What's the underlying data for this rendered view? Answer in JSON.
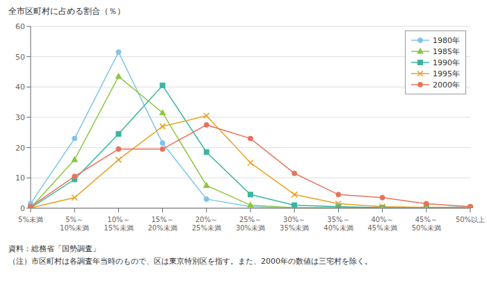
{
  "chart_data": {
    "type": "line",
    "title": "全市区町村に占める割合（％）",
    "categories": [
      "5%未満",
      "5%～\n10%未満",
      "10%～\n15%未満",
      "15%～\n20%未満",
      "20%～\n25%未満",
      "25%～\n30%未満",
      "30%～\n35%未満",
      "35%～\n40%未満",
      "40%～\n45%未満",
      "45%～\n50%未満",
      "50%以上"
    ],
    "series": [
      {
        "name": "1980年",
        "color": "#7fc4e8",
        "marker": "circle",
        "values": [
          1.5,
          23.0,
          51.5,
          21.5,
          3.0,
          0.5,
          0.2,
          0.2,
          0.2,
          0.2,
          0.5
        ]
      },
      {
        "name": "1985年",
        "color": "#8dc63f",
        "marker": "triangle",
        "values": [
          0.1,
          16.0,
          43.5,
          31.5,
          7.5,
          1.0,
          0.2,
          0.1,
          0.1,
          0.1,
          0.1
        ]
      },
      {
        "name": "1990年",
        "color": "#3ab5a0",
        "marker": "square",
        "values": [
          0.1,
          9.5,
          24.5,
          40.5,
          18.5,
          4.5,
          1.0,
          0.5,
          0.2,
          0.1,
          0.1
        ]
      },
      {
        "name": "1995年",
        "color": "#e8a020",
        "marker": "x",
        "values": [
          0.1,
          3.5,
          16.0,
          27.0,
          30.5,
          15.0,
          4.5,
          1.5,
          0.5,
          0.3,
          0.1
        ]
      },
      {
        "name": "2000年",
        "color": "#e8735a",
        "marker": "circle",
        "values": [
          0.5,
          10.5,
          19.5,
          19.5,
          27.5,
          23.0,
          11.5,
          4.5,
          3.5,
          1.5,
          0.5
        ]
      }
    ],
    "ylim": [
      0,
      60
    ],
    "yticks": [
      0,
      10,
      20,
      30,
      40,
      50,
      60
    ],
    "grid": true,
    "legend": "upper right",
    "annotations": [
      "資料：総務省「国勢調査」",
      "（注）市区町村は各調査年当時のもので、区は東京特別区を指す。また、2000年の数値は三宅村を除く。"
    ]
  }
}
